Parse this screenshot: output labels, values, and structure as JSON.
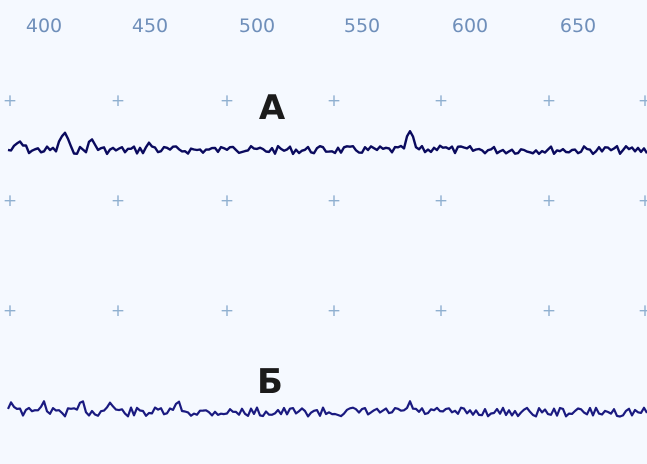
{
  "ruler": {
    "ticks": [
      "400",
      "450",
      "500",
      "550",
      "600",
      "650"
    ]
  },
  "colors": {
    "background": "#f5f9ff",
    "tick_text": "#6f8fba",
    "grid_marker": "#8fb0d0",
    "trace": "#0a0a5e"
  },
  "traces": [
    {
      "label": "А"
    },
    {
      "label": "Б"
    }
  ]
}
